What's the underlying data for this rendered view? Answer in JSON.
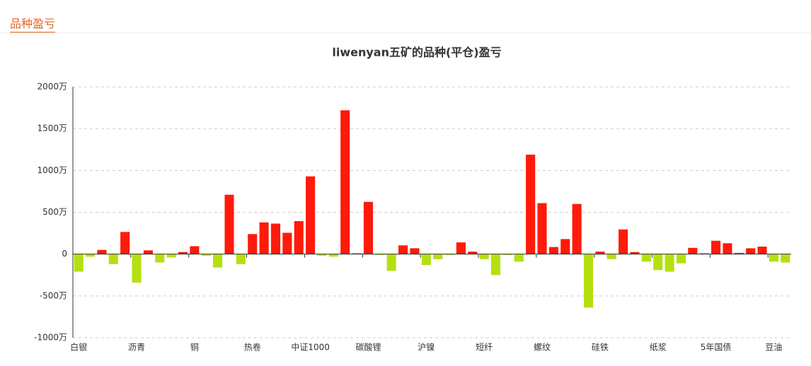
{
  "header": {
    "title": "品种盈亏"
  },
  "chart_data": {
    "type": "bar",
    "title": "liwenyan五矿的品种(平仓)盈亏",
    "categories": [
      "白银",
      null,
      null,
      null,
      null,
      "沥青",
      null,
      null,
      null,
      null,
      "铜",
      null,
      null,
      null,
      null,
      "热卷",
      null,
      null,
      null,
      null,
      "中证1000",
      null,
      null,
      null,
      null,
      "碳酸锂",
      null,
      null,
      null,
      null,
      "沪镍",
      null,
      null,
      null,
      null,
      "短纤",
      null,
      null,
      null,
      null,
      "螺纹",
      null,
      null,
      null,
      null,
      "硅铁",
      null,
      null,
      null,
      null,
      "纸浆",
      null,
      null,
      null,
      null,
      "5年国债",
      null,
      null,
      null,
      null,
      "豆油",
      null
    ],
    "values": [
      -210,
      -30,
      50,
      -120,
      265,
      -340,
      45,
      -100,
      -40,
      25,
      95,
      -20,
      -160,
      710,
      -120,
      240,
      380,
      365,
      255,
      395,
      930,
      -20,
      -30,
      1720,
      10,
      625,
      -10,
      -200,
      105,
      70,
      -130,
      -60,
      -10,
      140,
      30,
      -60,
      -250,
      -10,
      -90,
      1190,
      610,
      85,
      180,
      600,
      -640,
      30,
      -60,
      295,
      25,
      -90,
      -190,
      -210,
      -110,
      75,
      10,
      160,
      130,
      15,
      70,
      90,
      -90,
      -100
    ],
    "positive_color": "#ff1a0a",
    "negative_color": "#b5e00f",
    "ylim": [
      -1000,
      2000
    ],
    "yticks": [
      {
        "value": -1000,
        "label": "-1000万"
      },
      {
        "value": -500,
        "label": "-500万"
      },
      0,
      {
        "value": 500,
        "label": "500万"
      },
      {
        "value": 1000,
        "label": "1000万"
      },
      {
        "value": 1500,
        "label": "1500万"
      },
      {
        "value": 2000,
        "label": "2000万"
      }
    ],
    "grid": true
  }
}
